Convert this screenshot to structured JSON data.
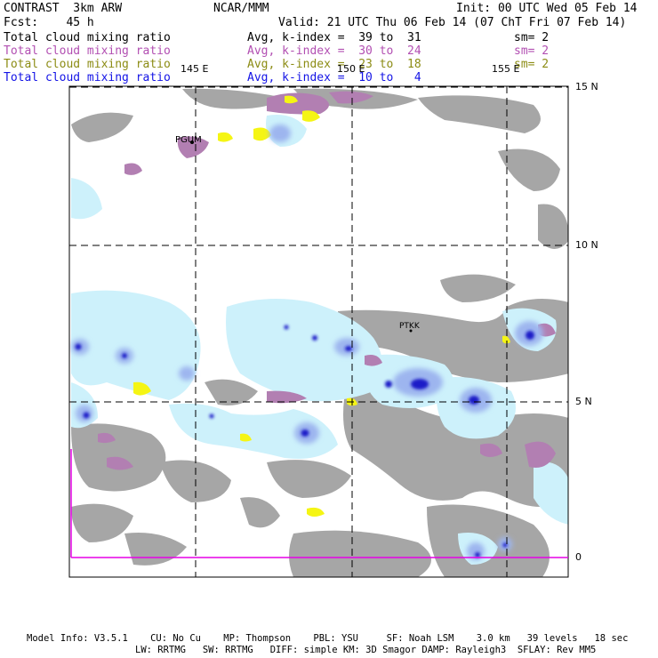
{
  "header": {
    "model": "CONTRAST  3km ARW",
    "center": "NCAR/MMM",
    "init": "Init: 00 UTC Wed 05 Feb 14",
    "fcst": "Fcst:    45 h",
    "valid": "Valid: 21 UTC Thu 06 Feb 14 (07 ChT Fri 07 Feb 14)"
  },
  "fields": [
    {
      "name": "Total cloud mixing ratio",
      "avg": "Avg, k-index =  39 to  31",
      "sm": "sm= 2",
      "color": "#000000"
    },
    {
      "name": "Total cloud mixing ratio",
      "avg": "Avg, k-index =  30 to  24",
      "sm": "sm= 2",
      "color": "#b24fb2"
    },
    {
      "name": "Total cloud mixing ratio",
      "avg": "Avg, k-index =  23 to  18",
      "sm": "sm= 2",
      "color": "#8c8c14"
    },
    {
      "name": "Total cloud mixing ratio",
      "avg": "Avg, k-index =  10 to   4",
      "sm": "",
      "color": "#1414e6"
    }
  ],
  "map": {
    "lon_labels": [
      "145 E",
      "150 E",
      "155 E"
    ],
    "lat_labels": [
      "15 N",
      "10 N",
      "5 N",
      "0"
    ],
    "stations": [
      "PGUM",
      "PTKK"
    ]
  },
  "footer": {
    "line1": "Model Info: V3.5.1    CU: No Cu    MP: Thompson    PBL: YSU     SF: Noah LSM    3.0 km   39 levels   18 sec",
    "line2": "LW: RRTMG   SW: RRTMG   DIFF: simple KM: 3D Smagor DAMP: Rayleigh3  SFLAY: Rev MM5"
  }
}
